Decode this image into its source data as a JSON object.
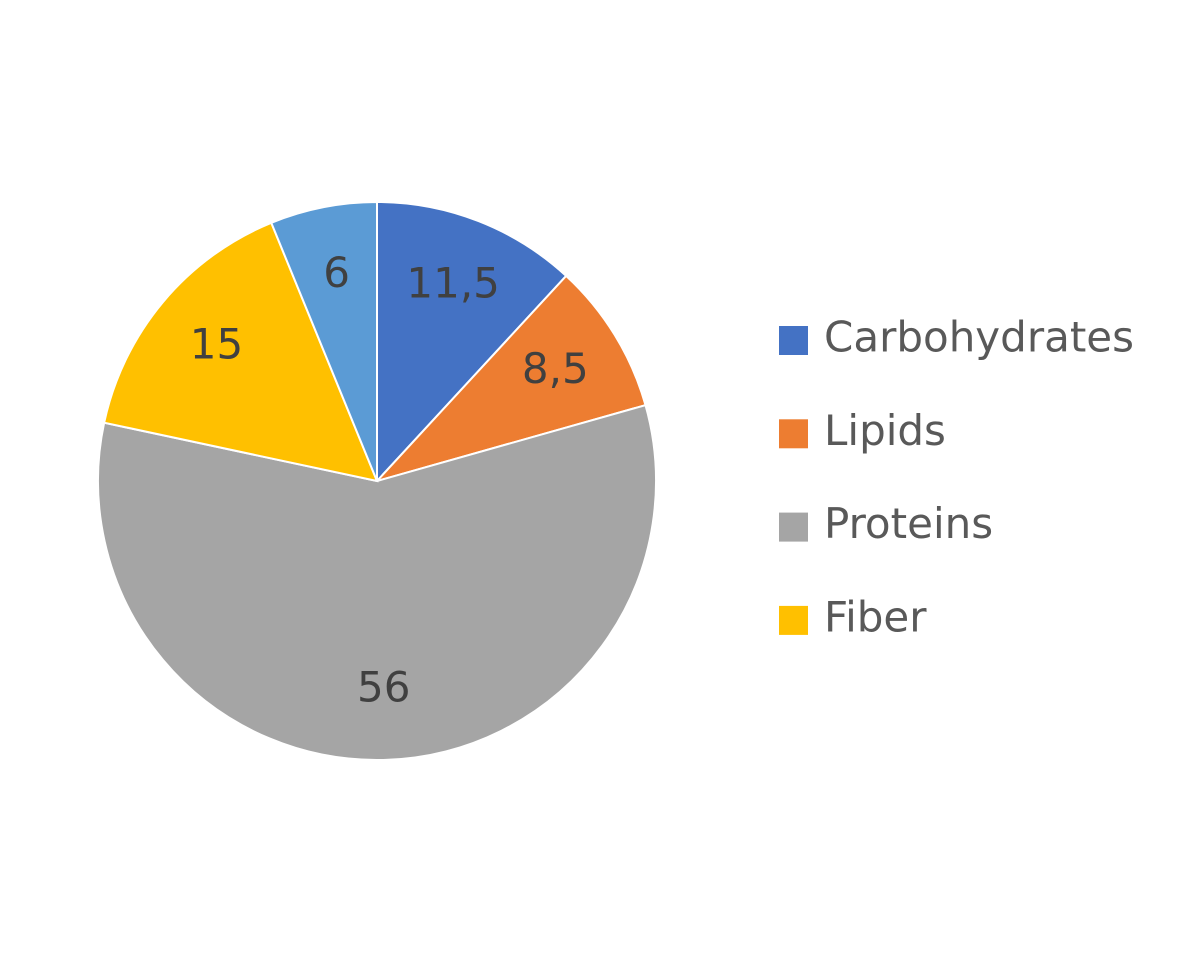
{
  "chart_data": {
    "type": "pie",
    "categories": [
      "Carbohydrates",
      "Lipids",
      "Proteins",
      "Fiber",
      null
    ],
    "values": [
      11.5,
      8.5,
      56,
      15,
      6
    ],
    "value_labels": [
      "11,5",
      "8,5",
      "56",
      "15",
      "6"
    ],
    "colors": [
      "#4472c4",
      "#ed7d31",
      "#a5a5a5",
      "#ffc000",
      "#5b9bd5"
    ],
    "legend": "right"
  }
}
